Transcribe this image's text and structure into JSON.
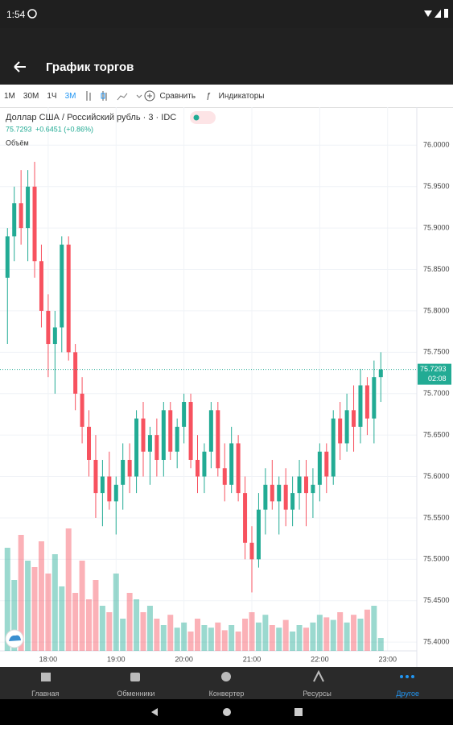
{
  "status_bar": {
    "time": "1:54"
  },
  "app_bar": {
    "title": "График торгов"
  },
  "toolbar": {
    "intervals": [
      "1М",
      "30М",
      "1Ч",
      "3М"
    ],
    "compare": "Сравнить",
    "indicators": "Индикаторы"
  },
  "chart_data": {
    "type": "candlestick",
    "title": "Доллар США / Российский рубль · 3 · IDC",
    "last_price": 75.7293,
    "change": "+0.6451 (+0.86%)",
    "volume_label": "Объём",
    "countdown": "02:08",
    "x": [
      17.4,
      17.5,
      17.6,
      17.7,
      17.8,
      17.9,
      18.0,
      18.1,
      18.2,
      18.3,
      18.4,
      18.5,
      18.6,
      18.7,
      18.8,
      18.9,
      19.0,
      19.1,
      19.2,
      19.3,
      19.4,
      19.5,
      19.6,
      19.7,
      19.8,
      19.9,
      20.0,
      20.1,
      20.2,
      20.3,
      20.4,
      20.5,
      20.6,
      20.7,
      20.8,
      20.9,
      21.0,
      21.1,
      21.2,
      21.3,
      21.4,
      21.5,
      21.6,
      21.7,
      21.8,
      21.9,
      22.0,
      22.1,
      22.2,
      22.3,
      22.4,
      22.5,
      22.6,
      22.7,
      22.8,
      22.9
    ],
    "open": [
      75.84,
      75.89,
      75.93,
      75.9,
      75.95,
      75.86,
      75.8,
      75.76,
      75.78,
      75.88,
      75.75,
      75.7,
      75.66,
      75.62,
      75.58,
      75.6,
      75.57,
      75.59,
      75.62,
      75.6,
      75.67,
      75.63,
      75.65,
      75.62,
      75.68,
      75.63,
      75.66,
      75.69,
      75.62,
      75.6,
      75.63,
      75.68,
      75.61,
      75.59,
      75.64,
      75.58,
      75.52,
      75.5,
      75.56,
      75.59,
      75.57,
      75.59,
      75.56,
      75.58,
      75.6,
      75.58,
      75.59,
      75.63,
      75.6,
      75.67,
      75.64,
      75.68,
      75.66,
      75.71,
      75.67,
      75.72
    ],
    "high": [
      75.9,
      75.95,
      75.97,
      75.97,
      75.98,
      75.88,
      75.82,
      75.8,
      75.89,
      75.89,
      75.76,
      75.72,
      75.68,
      75.65,
      75.62,
      75.63,
      75.6,
      75.64,
      75.64,
      75.68,
      75.69,
      75.66,
      75.67,
      75.69,
      75.69,
      75.67,
      75.7,
      75.7,
      75.65,
      75.64,
      75.69,
      75.69,
      75.64,
      75.66,
      75.65,
      75.6,
      75.54,
      75.58,
      75.61,
      75.62,
      75.6,
      75.61,
      75.6,
      75.62,
      75.62,
      75.61,
      75.64,
      75.64,
      75.68,
      75.69,
      75.7,
      75.71,
      75.73,
      75.72,
      75.74,
      75.75
    ],
    "low": [
      75.76,
      75.86,
      75.88,
      75.86,
      75.84,
      75.78,
      75.72,
      75.7,
      75.75,
      75.74,
      75.68,
      75.64,
      75.6,
      75.55,
      75.54,
      75.56,
      75.53,
      75.56,
      75.58,
      75.58,
      75.6,
      75.59,
      75.6,
      75.6,
      75.62,
      75.61,
      75.64,
      75.61,
      75.58,
      75.58,
      75.61,
      75.6,
      75.57,
      75.58,
      75.57,
      75.5,
      75.46,
      75.49,
      75.53,
      75.56,
      75.53,
      75.54,
      75.54,
      75.56,
      75.54,
      75.55,
      75.57,
      75.58,
      75.59,
      75.62,
      75.63,
      75.63,
      75.64,
      75.65,
      75.64,
      75.69
    ],
    "close": [
      75.89,
      75.93,
      75.9,
      75.95,
      75.86,
      75.8,
      75.76,
      75.78,
      75.88,
      75.75,
      75.7,
      75.66,
      75.62,
      75.58,
      75.6,
      75.57,
      75.59,
      75.62,
      75.6,
      75.67,
      75.63,
      75.65,
      75.62,
      75.68,
      75.63,
      75.66,
      75.69,
      75.62,
      75.6,
      75.63,
      75.68,
      75.61,
      75.59,
      75.64,
      75.58,
      75.52,
      75.5,
      75.56,
      75.59,
      75.57,
      75.59,
      75.56,
      75.58,
      75.6,
      75.58,
      75.59,
      75.63,
      75.6,
      75.67,
      75.64,
      75.68,
      75.66,
      75.71,
      75.67,
      75.72,
      75.7293
    ],
    "volume": [
      80,
      55,
      90,
      70,
      65,
      85,
      60,
      75,
      50,
      95,
      45,
      70,
      40,
      55,
      35,
      30,
      60,
      25,
      45,
      40,
      30,
      35,
      25,
      20,
      28,
      18,
      22,
      15,
      25,
      20,
      18,
      22,
      16,
      20,
      15,
      25,
      30,
      22,
      28,
      20,
      18,
      24,
      15,
      20,
      18,
      22,
      28,
      26,
      24,
      30,
      22,
      28,
      25,
      32,
      35,
      10
    ],
    "up_color": "#22ab94",
    "down_color": "#f7525f",
    "xlim": [
      17.29,
      23.43
    ],
    "xticks": [
      {
        "value": 18,
        "label": "18:00"
      },
      {
        "value": 19,
        "label": "19:00"
      },
      {
        "value": 20,
        "label": "20:00"
      },
      {
        "value": 21,
        "label": "21:00"
      },
      {
        "value": 22,
        "label": "22:00"
      },
      {
        "value": 23,
        "label": "23:00"
      }
    ],
    "ylim": [
      75.37,
      76.046
    ],
    "yticks": [
      {
        "value": 76,
        "label": "76.0000"
      },
      {
        "value": 75.95,
        "label": "75.9500"
      },
      {
        "value": 75.9,
        "label": "75.9000"
      },
      {
        "value": 75.85,
        "label": "75.8500"
      },
      {
        "value": 75.8,
        "label": "75.8000"
      },
      {
        "value": 75.75,
        "label": "75.7500"
      },
      {
        "value": 75.7,
        "label": "75.7000"
      },
      {
        "value": 75.65,
        "label": "75.6500"
      },
      {
        "value": 75.6,
        "label": "75.6000"
      },
      {
        "value": 75.55,
        "label": "75.5500"
      },
      {
        "value": 75.5,
        "label": "75.5000"
      },
      {
        "value": 75.45,
        "label": "75.4500"
      },
      {
        "value": 75.4,
        "label": "75.4000"
      }
    ],
    "y2lim": [
      0,
      100
    ],
    "grid": true
  },
  "bottom_nav": {
    "items": [
      "Главная",
      "Обменники",
      "Конвертер",
      "Ресурсы",
      "Другое"
    ]
  }
}
